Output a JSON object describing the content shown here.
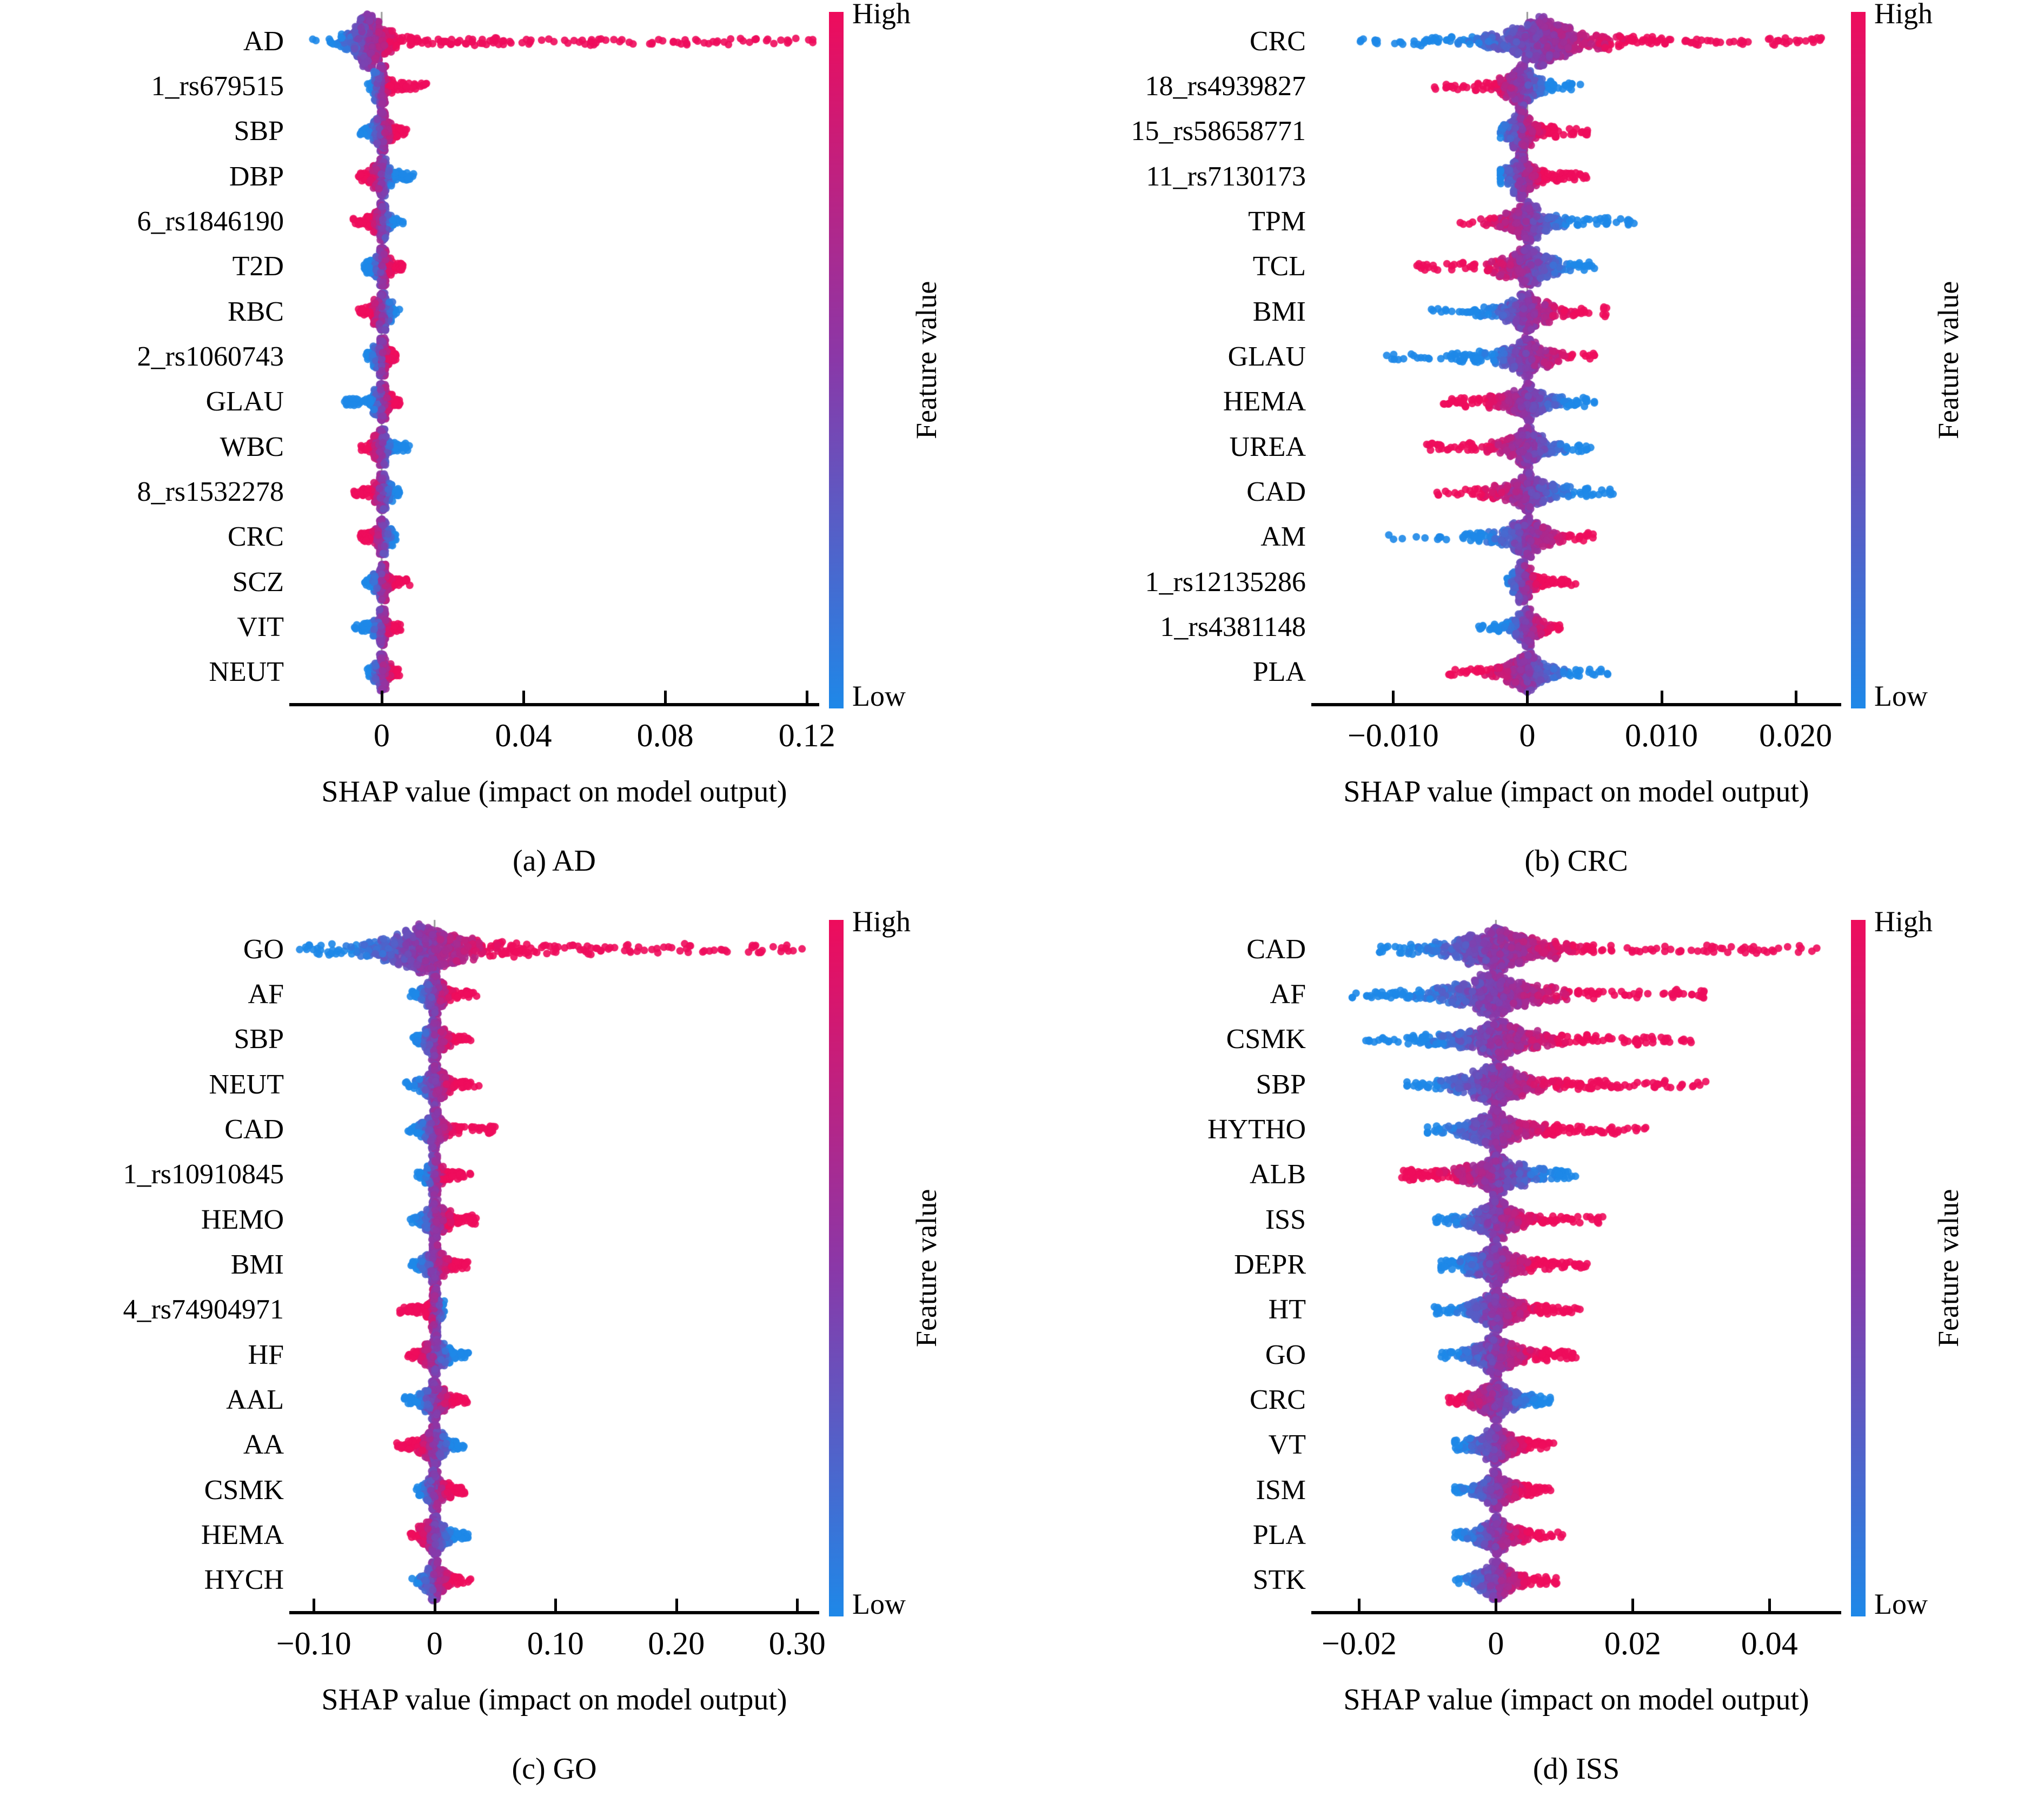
{
  "figure": {
    "colorbar": {
      "high": "High",
      "low": "Low",
      "title": "Feature value"
    },
    "colors": {
      "low": "#1E88E8",
      "mid": "#8A38A8",
      "high": "#EE0C5C",
      "zero_line": "#999999",
      "axis": "#000000",
      "text": "#000000",
      "background": "#FFFFFF"
    }
  },
  "chart_data": [
    {
      "type": "shap-beeswarm",
      "id": "a",
      "caption": "(a) AD",
      "xlabel": "SHAP value (impact on model output)",
      "xlim": [
        -0.0253,
        0.1227
      ],
      "grid": false,
      "legend_position": "right-colorbar",
      "xticks": [
        {
          "v": 0,
          "label": "0"
        },
        {
          "v": 0.04,
          "label": "0.04"
        },
        {
          "v": 0.08,
          "label": "0.08"
        },
        {
          "v": 0.12,
          "label": "0.12"
        }
      ],
      "features": [
        {
          "name": "AD",
          "shap_min": -0.02,
          "shap_max": 0.123,
          "mode": -0.004,
          "scale": 0.004,
          "trend": "blue_to_red",
          "n": 620,
          "thick": 1.5
        },
        {
          "name": "1_rs679515",
          "shap_min": -0.004,
          "shap_max": 0.0135,
          "mode": -0.0003,
          "scale": 0.0012,
          "trend": "blue_to_red",
          "n": 330,
          "thick": 1.15
        },
        {
          "name": "SBP",
          "shap_min": -0.006,
          "shap_max": 0.007,
          "mode": 0,
          "scale": 0.0018,
          "trend": "blue_to_red",
          "n": 340,
          "thick": 1.1
        },
        {
          "name": "DBP",
          "shap_min": -0.0065,
          "shap_max": 0.009,
          "mode": 0,
          "scale": 0.0018,
          "trend": "red_to_blue",
          "n": 340,
          "thick": 1.1
        },
        {
          "name": "6_rs1846190",
          "shap_min": -0.008,
          "shap_max": 0.006,
          "mode": 0,
          "scale": 0.0016,
          "trend": "red_to_blue",
          "n": 330,
          "thick": 1.05
        },
        {
          "name": "T2D",
          "shap_min": -0.005,
          "shap_max": 0.006,
          "mode": 0,
          "scale": 0.0015,
          "trend": "blue_to_red",
          "n": 330,
          "thick": 1.05
        },
        {
          "name": "RBC",
          "shap_min": -0.007,
          "shap_max": 0.005,
          "mode": 0,
          "scale": 0.0016,
          "trend": "red_to_blue",
          "n": 330,
          "thick": 1.05
        },
        {
          "name": "2_rs1060743",
          "shap_min": -0.0045,
          "shap_max": 0.004,
          "mode": 0,
          "scale": 0.0013,
          "trend": "blue_to_red",
          "n": 320,
          "thick": 1.05
        },
        {
          "name": "GLAU",
          "shap_min": -0.011,
          "shap_max": 0.0055,
          "mode": 0,
          "scale": 0.0014,
          "trend": "blue_to_red",
          "n": 320,
          "thick": 1.0
        },
        {
          "name": "WBC",
          "shap_min": -0.0065,
          "shap_max": 0.008,
          "mode": 0,
          "scale": 0.0016,
          "trend": "red_to_blue",
          "n": 320,
          "thick": 1.0
        },
        {
          "name": "8_rs1532278",
          "shap_min": -0.008,
          "shap_max": 0.005,
          "mode": 0,
          "scale": 0.0014,
          "trend": "red_to_blue",
          "n": 320,
          "thick": 1.0
        },
        {
          "name": "CRC",
          "shap_min": -0.006,
          "shap_max": 0.004,
          "mode": 0,
          "scale": 0.0015,
          "trend": "red_to_blue",
          "n": 320,
          "thick": 1.0
        },
        {
          "name": "SCZ",
          "shap_min": -0.005,
          "shap_max": 0.008,
          "mode": 0,
          "scale": 0.0014,
          "trend": "blue_to_red",
          "n": 320,
          "thick": 1.0
        },
        {
          "name": "VIT",
          "shap_min": -0.008,
          "shap_max": 0.006,
          "mode": 0,
          "scale": 0.0015,
          "trend": "blue_to_red",
          "n": 320,
          "thick": 1.0
        },
        {
          "name": "NEUT",
          "shap_min": -0.004,
          "shap_max": 0.005,
          "mode": 0,
          "scale": 0.0014,
          "trend": "blue_to_red",
          "n": 320,
          "thick": 1.0
        }
      ]
    },
    {
      "type": "shap-beeswarm",
      "id": "b",
      "caption": "(b) CRC",
      "xlabel": "SHAP value (impact on model output)",
      "xlim": [
        -0.0159,
        0.0232
      ],
      "grid": false,
      "legend_position": "right-colorbar",
      "xticks": [
        {
          "v": -0.01,
          "label": "−0.010"
        },
        {
          "v": 0,
          "label": "0"
        },
        {
          "v": 0.01,
          "label": "0.010"
        },
        {
          "v": 0.02,
          "label": "0.020"
        }
      ],
      "features": [
        {
          "name": "CRC",
          "shap_min": -0.0125,
          "shap_max": 0.022,
          "mode": 0.001,
          "scale": 0.003,
          "trend": "blue_to_red",
          "n": 720,
          "thick": 1.35
        },
        {
          "name": "18_rs4939827",
          "shap_min": -0.0075,
          "shap_max": 0.004,
          "mode": -0.0005,
          "scale": 0.001,
          "trend": "red_to_blue",
          "n": 360,
          "thick": 1.2
        },
        {
          "name": "15_rs58658771",
          "shap_min": -0.002,
          "shap_max": 0.0045,
          "mode": -0.0005,
          "scale": 0.0008,
          "trend": "blue_to_red",
          "n": 340,
          "thick": 1.2
        },
        {
          "name": "11_rs7130173",
          "shap_min": -0.002,
          "shap_max": 0.0045,
          "mode": -0.0005,
          "scale": 0.0008,
          "trend": "blue_to_red",
          "n": 340,
          "thick": 1.2
        },
        {
          "name": "TPM",
          "shap_min": -0.005,
          "shap_max": 0.0085,
          "mode": 0,
          "scale": 0.0016,
          "trend": "red_to_blue",
          "n": 360,
          "thick": 1.1
        },
        {
          "name": "TCL",
          "shap_min": -0.0085,
          "shap_max": 0.005,
          "mode": 0,
          "scale": 0.0016,
          "trend": "red_to_blue",
          "n": 360,
          "thick": 1.1
        },
        {
          "name": "BMI",
          "shap_min": -0.008,
          "shap_max": 0.006,
          "mode": 0,
          "scale": 0.0016,
          "trend": "blue_to_red",
          "n": 360,
          "thick": 1.1
        },
        {
          "name": "GLAU",
          "shap_min": -0.0105,
          "shap_max": 0.005,
          "mode": 0,
          "scale": 0.0016,
          "trend": "blue_to_red",
          "n": 360,
          "thick": 1.1
        },
        {
          "name": "HEMA",
          "shap_min": -0.007,
          "shap_max": 0.005,
          "mode": 0,
          "scale": 0.0016,
          "trend": "red_to_blue",
          "n": 360,
          "thick": 1.1
        },
        {
          "name": "UREA",
          "shap_min": -0.0075,
          "shap_max": 0.005,
          "mode": 0,
          "scale": 0.0016,
          "trend": "red_to_blue",
          "n": 360,
          "thick": 1.1
        },
        {
          "name": "CAD",
          "shap_min": -0.007,
          "shap_max": 0.0065,
          "mode": 0,
          "scale": 0.0016,
          "trend": "red_to_blue",
          "n": 360,
          "thick": 1.1
        },
        {
          "name": "AM",
          "shap_min": -0.0105,
          "shap_max": 0.005,
          "mode": 0,
          "scale": 0.0016,
          "trend": "blue_to_red",
          "n": 360,
          "thick": 1.1
        },
        {
          "name": "1_rs12135286",
          "shap_min": -0.0015,
          "shap_max": 0.004,
          "mode": -0.0003,
          "scale": 0.0006,
          "trend": "blue_to_red",
          "n": 320,
          "thick": 1.1
        },
        {
          "name": "1_rs4381148",
          "shap_min": -0.004,
          "shap_max": 0.003,
          "mode": 0,
          "scale": 0.0008,
          "trend": "blue_to_red",
          "n": 320,
          "thick": 1.1
        },
        {
          "name": "PLA",
          "shap_min": -0.006,
          "shap_max": 0.006,
          "mode": 0,
          "scale": 0.0015,
          "trend": "red_to_blue",
          "n": 360,
          "thick": 1.1
        }
      ]
    },
    {
      "type": "shap-beeswarm",
      "id": "c",
      "caption": "(c) GO",
      "xlabel": "SHAP value (impact on model output)",
      "xlim": [
        -0.118,
        0.316
      ],
      "grid": false,
      "legend_position": "right-colorbar",
      "xticks": [
        {
          "v": -0.1,
          "label": "−0.10"
        },
        {
          "v": 0,
          "label": "0"
        },
        {
          "v": 0.1,
          "label": "0.10"
        },
        {
          "v": 0.2,
          "label": "0.20"
        },
        {
          "v": 0.3,
          "label": "0.30"
        }
      ],
      "features": [
        {
          "name": "GO",
          "shap_min": -0.112,
          "shap_max": 0.305,
          "mode": -0.01,
          "scale": 0.03,
          "trend": "blue_to_red",
          "n": 700,
          "thick": 1.4
        },
        {
          "name": "AF",
          "shap_min": -0.02,
          "shap_max": 0.035,
          "mode": 0,
          "scale": 0.007,
          "trend": "blue_to_red",
          "n": 340,
          "thick": 1.1
        },
        {
          "name": "SBP",
          "shap_min": -0.02,
          "shap_max": 0.03,
          "mode": 0,
          "scale": 0.007,
          "trend": "blue_to_red",
          "n": 340,
          "thick": 1.1
        },
        {
          "name": "NEUT",
          "shap_min": -0.025,
          "shap_max": 0.04,
          "mode": 0,
          "scale": 0.008,
          "trend": "blue_to_red",
          "n": 340,
          "thick": 1.1
        },
        {
          "name": "CAD",
          "shap_min": -0.022,
          "shap_max": 0.05,
          "mode": 0,
          "scale": 0.007,
          "trend": "blue_to_red",
          "n": 340,
          "thick": 1.1
        },
        {
          "name": "1_rs10910845",
          "shap_min": -0.015,
          "shap_max": 0.03,
          "mode": 0,
          "scale": 0.004,
          "trend": "blue_to_red",
          "n": 320,
          "thick": 1.1
        },
        {
          "name": "HEMO",
          "shap_min": -0.02,
          "shap_max": 0.035,
          "mode": 0,
          "scale": 0.007,
          "trend": "blue_to_red",
          "n": 340,
          "thick": 1.1
        },
        {
          "name": "BMI",
          "shap_min": -0.02,
          "shap_max": 0.03,
          "mode": 0,
          "scale": 0.007,
          "trend": "blue_to_red",
          "n": 340,
          "thick": 1.1
        },
        {
          "name": "4_rs74904971",
          "shap_min": -0.032,
          "shap_max": 0.008,
          "mode": 0.001,
          "scale": 0.003,
          "trend": "red_to_blue",
          "n": 320,
          "thick": 1.2
        },
        {
          "name": "HF",
          "shap_min": -0.022,
          "shap_max": 0.028,
          "mode": 0,
          "scale": 0.007,
          "trend": "red_to_blue",
          "n": 340,
          "thick": 1.1
        },
        {
          "name": "AAL",
          "shap_min": -0.025,
          "shap_max": 0.03,
          "mode": 0,
          "scale": 0.007,
          "trend": "blue_to_red",
          "n": 340,
          "thick": 1.1
        },
        {
          "name": "AA",
          "shap_min": -0.032,
          "shap_max": 0.025,
          "mode": 0,
          "scale": 0.007,
          "trend": "red_to_blue",
          "n": 340,
          "thick": 1.1
        },
        {
          "name": "CSMK",
          "shap_min": -0.015,
          "shap_max": 0.025,
          "mode": 0,
          "scale": 0.006,
          "trend": "blue_to_red",
          "n": 330,
          "thick": 1.1
        },
        {
          "name": "HEMA",
          "shap_min": -0.02,
          "shap_max": 0.03,
          "mode": 0,
          "scale": 0.007,
          "trend": "red_to_blue",
          "n": 340,
          "thick": 1.1
        },
        {
          "name": "HYCH",
          "shap_min": -0.02,
          "shap_max": 0.03,
          "mode": 0,
          "scale": 0.007,
          "trend": "blue_to_red",
          "n": 340,
          "thick": 1.1
        }
      ]
    },
    {
      "type": "shap-beeswarm",
      "id": "d",
      "caption": "(d) ISS",
      "xlabel": "SHAP value (impact on model output)",
      "xlim": [
        -0.0266,
        0.0501
      ],
      "grid": false,
      "legend_position": "right-colorbar",
      "xticks": [
        {
          "v": -0.02,
          "label": "−0.02"
        },
        {
          "v": 0,
          "label": "0"
        },
        {
          "v": 0.02,
          "label": "0.02"
        },
        {
          "v": 0.04,
          "label": "0.04"
        }
      ],
      "features": [
        {
          "name": "CAD",
          "shap_min": -0.017,
          "shap_max": 0.049,
          "mode": 0,
          "scale": 0.006,
          "trend": "blue_to_red",
          "n": 650,
          "thick": 1.25
        },
        {
          "name": "AF",
          "shap_min": -0.021,
          "shap_max": 0.031,
          "mode": 0,
          "scale": 0.006,
          "trend": "blue_to_red",
          "n": 600,
          "thick": 1.2
        },
        {
          "name": "CSMK",
          "shap_min": -0.019,
          "shap_max": 0.029,
          "mode": 0,
          "scale": 0.005,
          "trend": "blue_to_red",
          "n": 580,
          "thick": 1.2
        },
        {
          "name": "SBP",
          "shap_min": -0.013,
          "shap_max": 0.031,
          "mode": 0,
          "scale": 0.005,
          "trend": "blue_to_red",
          "n": 560,
          "thick": 1.15
        },
        {
          "name": "HYTHO",
          "shap_min": -0.01,
          "shap_max": 0.022,
          "mode": 0,
          "scale": 0.004,
          "trend": "blue_to_red",
          "n": 520,
          "thick": 1.15
        },
        {
          "name": "ALB",
          "shap_min": -0.014,
          "shap_max": 0.012,
          "mode": 0,
          "scale": 0.004,
          "trend": "red_to_blue",
          "n": 520,
          "thick": 1.15
        },
        {
          "name": "ISS",
          "shap_min": -0.009,
          "shap_max": 0.016,
          "mode": 0,
          "scale": 0.003,
          "trend": "blue_to_red",
          "n": 480,
          "thick": 1.1
        },
        {
          "name": "DEPR",
          "shap_min": -0.008,
          "shap_max": 0.014,
          "mode": 0,
          "scale": 0.003,
          "trend": "blue_to_red",
          "n": 470,
          "thick": 1.1
        },
        {
          "name": "HT",
          "shap_min": -0.009,
          "shap_max": 0.013,
          "mode": 0,
          "scale": 0.003,
          "trend": "blue_to_red",
          "n": 470,
          "thick": 1.1
        },
        {
          "name": "GO",
          "shap_min": -0.008,
          "shap_max": 0.012,
          "mode": 0,
          "scale": 0.003,
          "trend": "blue_to_red",
          "n": 460,
          "thick": 1.1
        },
        {
          "name": "CRC",
          "shap_min": -0.007,
          "shap_max": 0.008,
          "mode": 0,
          "scale": 0.0028,
          "trend": "red_to_blue",
          "n": 440,
          "thick": 1.1
        },
        {
          "name": "VT",
          "shap_min": -0.006,
          "shap_max": 0.009,
          "mode": 0,
          "scale": 0.0024,
          "trend": "blue_to_red",
          "n": 420,
          "thick": 1.05
        },
        {
          "name": "ISM",
          "shap_min": -0.006,
          "shap_max": 0.008,
          "mode": 0,
          "scale": 0.0024,
          "trend": "blue_to_red",
          "n": 420,
          "thick": 1.05
        },
        {
          "name": "PLA",
          "shap_min": -0.006,
          "shap_max": 0.01,
          "mode": 0,
          "scale": 0.0024,
          "trend": "blue_to_red",
          "n": 420,
          "thick": 1.05
        },
        {
          "name": "STK",
          "shap_min": -0.006,
          "shap_max": 0.009,
          "mode": 0,
          "scale": 0.0024,
          "trend": "blue_to_red",
          "n": 420,
          "thick": 1.05
        }
      ]
    }
  ]
}
